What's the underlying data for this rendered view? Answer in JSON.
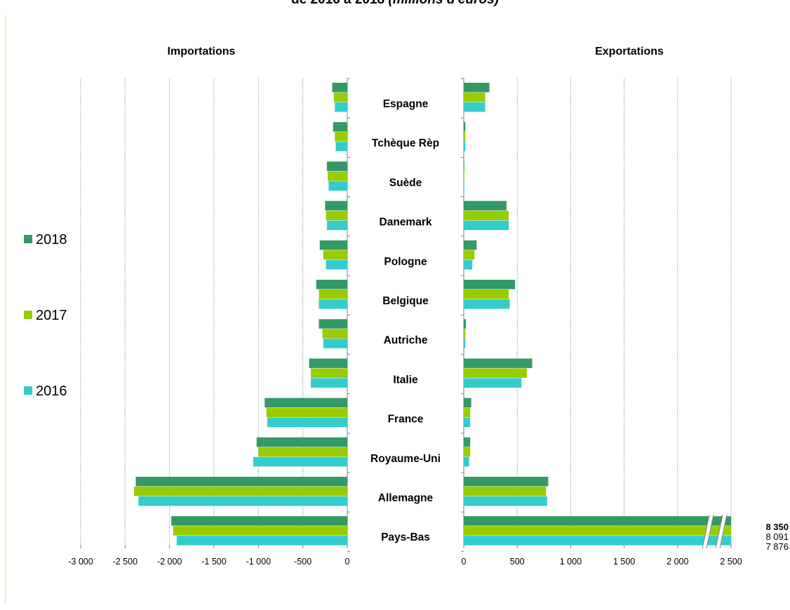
{
  "title": {
    "main": "de 2016 à 2018",
    "emphasis": "(millions d'euros)"
  },
  "colors": {
    "2018": "#339966",
    "2017": "#99cc00",
    "2016": "#33cccc"
  },
  "chart_data": {
    "type": "bar",
    "orientation": "horizontal",
    "unit": "millions d'euros",
    "categories": [
      "Espagne",
      "Tchèque Rèp",
      "Suède",
      "Danemark",
      "Pologne",
      "Belgique",
      "Autriche",
      "Italie",
      "France",
      "Royaume-Uni",
      "Allemagne",
      "Pays-Bas"
    ],
    "legend": {
      "entries": [
        "2018",
        "2017",
        "2016"
      ],
      "position": "left"
    },
    "panels": [
      {
        "title": "Importations",
        "xlim": [
          -3000,
          0
        ],
        "xticks": [
          -3000,
          -2500,
          -2000,
          -1500,
          -1000,
          -500,
          0
        ],
        "xtick_labels": [
          "-3 000",
          "-2 500",
          "-2 000",
          "-1 500",
          "-1 000",
          "-500",
          "0"
        ],
        "grid": "vertical-dotted",
        "series": [
          {
            "name": "2018",
            "values": [
              -170,
              -160,
              -230,
              -250,
              -310,
              -350,
              -320,
              -430,
              -930,
              -1020,
              -2380,
              -1980
            ]
          },
          {
            "name": "2017",
            "values": [
              -150,
              -140,
              -220,
              -240,
              -270,
              -320,
              -280,
              -410,
              -910,
              -1000,
              -2400,
              -1960
            ]
          },
          {
            "name": "2016",
            "values": [
              -140,
              -130,
              -210,
              -230,
              -240,
              -320,
              -270,
              -410,
              -900,
              -1060,
              -2350,
              -1920
            ]
          }
        ]
      },
      {
        "title": "Exportations",
        "xlim": [
          0,
          2500
        ],
        "xticks": [
          0,
          500,
          1000,
          1500,
          2000,
          2500
        ],
        "xtick_labels": [
          "0",
          "500",
          "1 000",
          "1 500",
          "2 000",
          "2 500"
        ],
        "grid": "vertical-dotted",
        "axis_break": "Pays-Bas",
        "series": [
          {
            "name": "2018",
            "values": [
              240,
              15,
              5,
              400,
              120,
              480,
              20,
              640,
              70,
              60,
              790,
              8350
            ]
          },
          {
            "name": "2017",
            "values": [
              200,
              15,
              5,
              420,
              100,
              420,
              15,
              590,
              60,
              60,
              770,
              8091
            ]
          },
          {
            "name": "2016",
            "values": [
              200,
              15,
              5,
              420,
              80,
              430,
              15,
              540,
              60,
              50,
              780,
              7876
            ]
          }
        ],
        "annotations": [
          {
            "category": "Pays-Bas",
            "series": "2018",
            "text": "8 350",
            "bold": true
          },
          {
            "category": "Pays-Bas",
            "series": "2017",
            "text": "8 091",
            "bold": false
          },
          {
            "category": "Pays-Bas",
            "series": "2016",
            "text": "7 876",
            "bold": false
          }
        ]
      }
    ]
  }
}
